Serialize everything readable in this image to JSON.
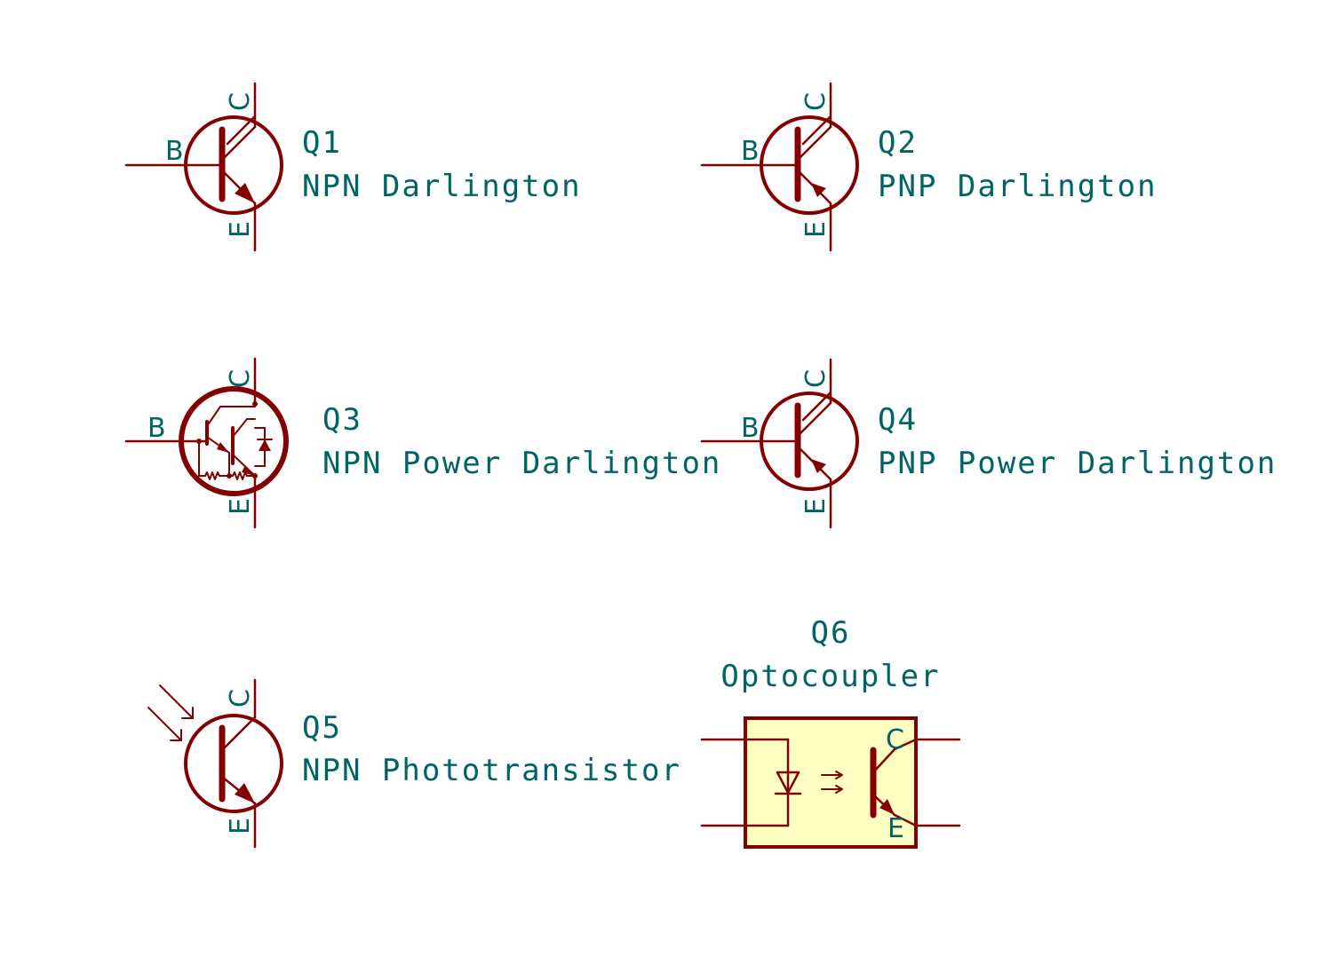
{
  "colors": {
    "symbol": "#840000",
    "text": "#006464",
    "optocoupler_body": "#ffffc2",
    "background": "#ffffff"
  },
  "pins": {
    "base": "B",
    "collector": "C",
    "emitter": "E"
  },
  "components": [
    {
      "ref": "Q1",
      "value": "NPN Darlington"
    },
    {
      "ref": "Q2",
      "value": "PNP Darlington"
    },
    {
      "ref": "Q3",
      "value": "NPN Power Darlington"
    },
    {
      "ref": "Q4",
      "value": "PNP Power Darlington"
    },
    {
      "ref": "Q5",
      "value": "NPN Phototransistor"
    },
    {
      "ref": "Q6",
      "value": "Optocoupler"
    }
  ]
}
